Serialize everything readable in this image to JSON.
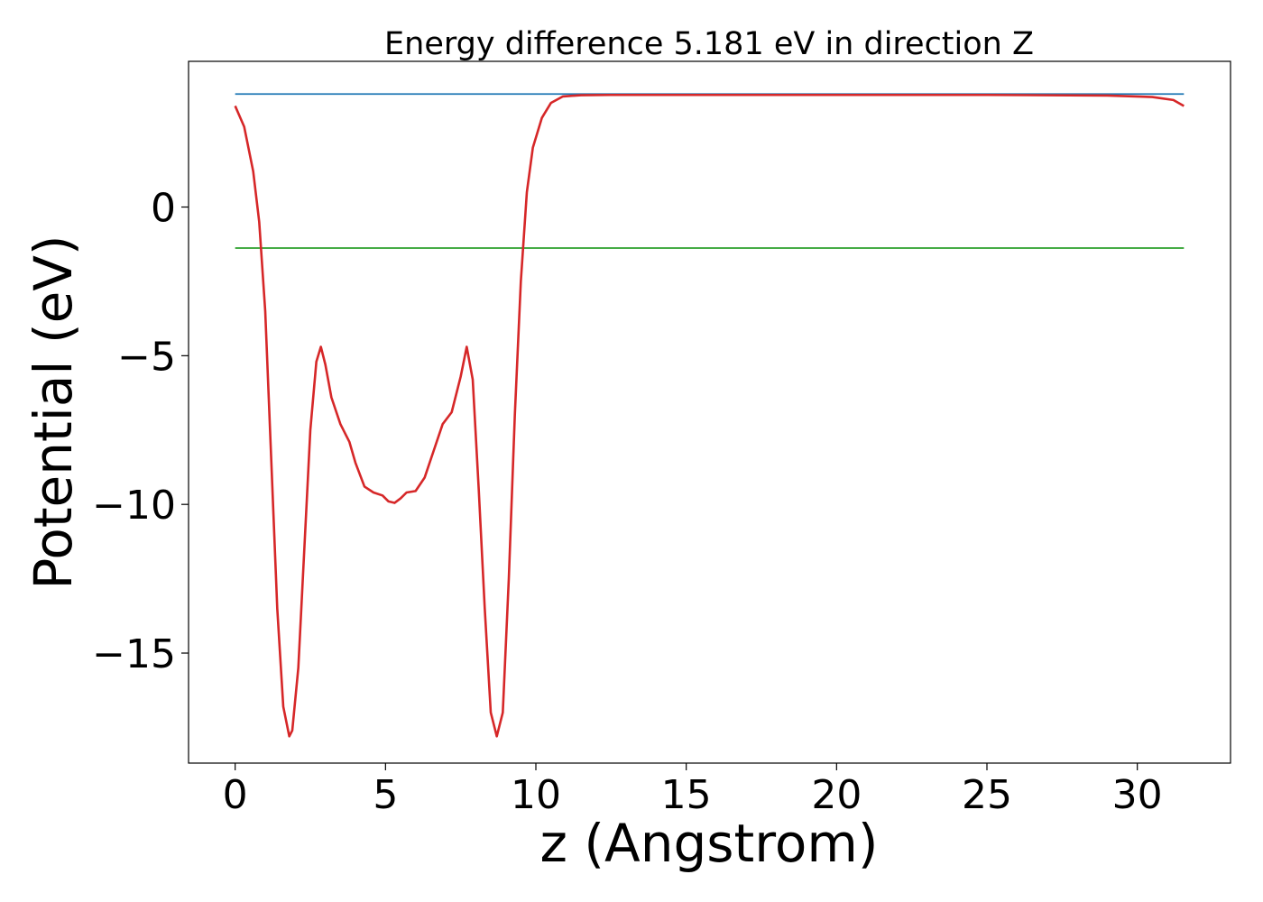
{
  "chart_data": {
    "type": "line",
    "title": "Energy difference 5.181 eV in direction Z",
    "xlabel": "z (Angstrom)",
    "ylabel": "Potential (eV)",
    "xlim": [
      -1.55,
      33.1
    ],
    "ylim": [
      -18.7,
      4.9
    ],
    "xticks": [
      0,
      5,
      10,
      15,
      20,
      25,
      30
    ],
    "yticks": [
      0,
      -5,
      -10,
      -15
    ],
    "xtick_labels": [
      "0",
      "5",
      "10",
      "15",
      "20",
      "25",
      "30"
    ],
    "ytick_labels": [
      "0",
      "−5",
      "−10",
      "−15"
    ],
    "grid": false,
    "legend": "none",
    "series": [
      {
        "color": "#1f77b4",
        "x": [
          0,
          31.55
        ],
        "y": [
          3.8,
          3.8
        ]
      },
      {
        "color": "#2ca02c",
        "x": [
          0,
          31.55
        ],
        "y": [
          -1.38,
          -1.38
        ]
      },
      {
        "color": "#d62728",
        "x": [
          0,
          0.3,
          0.6,
          0.8,
          1.0,
          1.2,
          1.4,
          1.6,
          1.8,
          1.9,
          2.1,
          2.3,
          2.5,
          2.7,
          2.85,
          3.0,
          3.2,
          3.5,
          3.8,
          4.0,
          4.3,
          4.6,
          4.9,
          5.1,
          5.3,
          5.5,
          5.7,
          6.0,
          6.3,
          6.6,
          6.9,
          7.2,
          7.5,
          7.7,
          7.9,
          8.1,
          8.3,
          8.5,
          8.7,
          8.9,
          9.1,
          9.3,
          9.5,
          9.7,
          9.9,
          10.2,
          10.5,
          10.9,
          11.5,
          12.5,
          15,
          20,
          25,
          29,
          30.5,
          31.2,
          31.55
        ],
        "y": [
          3.4,
          2.7,
          1.2,
          -0.5,
          -3.5,
          -8.5,
          -13.5,
          -16.8,
          -17.8,
          -17.6,
          -15.5,
          -11.5,
          -7.5,
          -5.2,
          -4.7,
          -5.3,
          -6.4,
          -7.3,
          -7.9,
          -8.6,
          -9.4,
          -9.6,
          -9.7,
          -9.9,
          -9.95,
          -9.8,
          -9.6,
          -9.55,
          -9.1,
          -8.2,
          -7.3,
          -6.9,
          -5.7,
          -4.7,
          -5.8,
          -9.5,
          -13.5,
          -17.0,
          -17.8,
          -17.0,
          -12.5,
          -7.0,
          -2.5,
          0.5,
          2.0,
          3.0,
          3.5,
          3.72,
          3.76,
          3.77,
          3.77,
          3.77,
          3.77,
          3.75,
          3.7,
          3.6,
          3.4
        ]
      }
    ]
  }
}
